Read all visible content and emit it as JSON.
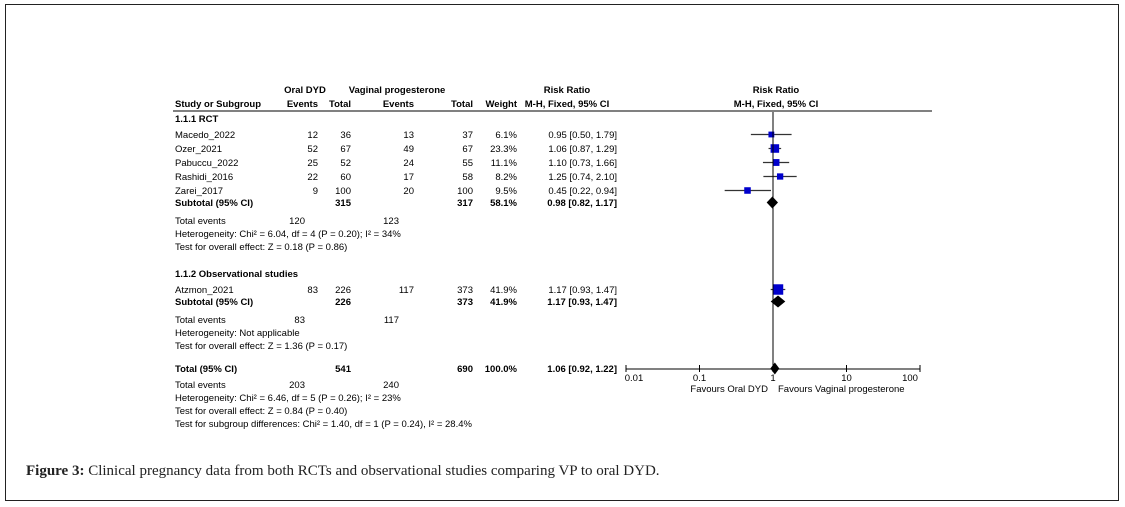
{
  "caption": {
    "label": "Figure 3:",
    "text": " Clinical pregnancy data from both RCTs and observational studies comparing VP to oral DYD."
  },
  "chart_data": {
    "type": "forest",
    "header": {
      "group1": "Oral DYD",
      "group2": "Vaginal progesterone",
      "rr_title": "Risk Ratio",
      "rr_method": "M-H, Fixed, 95% CI",
      "col_study": "Study or Subgroup",
      "col_events": "Events",
      "col_total": "Total",
      "col_weight": "Weight",
      "plot_title": "Risk Ratio",
      "plot_method": "M-H, Fixed, 95% CI"
    },
    "subgroups": [
      {
        "title": "1.1.1 RCT",
        "studies": [
          {
            "name": "Macedo_2022",
            "e1": "12",
            "n1": "36",
            "e2": "13",
            "n2": "37",
            "weight": "6.1%",
            "ci": "0.95 [0.50, 1.79]",
            "rr": 0.95,
            "lo": 0.5,
            "hi": 1.79,
            "w": 6.1
          },
          {
            "name": "Ozer_2021",
            "e1": "52",
            "n1": "67",
            "e2": "49",
            "n2": "67",
            "weight": "23.3%",
            "ci": "1.06 [0.87, 1.29]",
            "rr": 1.06,
            "lo": 0.87,
            "hi": 1.29,
            "w": 23.3
          },
          {
            "name": "Pabuccu_2022",
            "e1": "25",
            "n1": "52",
            "e2": "24",
            "n2": "55",
            "weight": "11.1%",
            "ci": "1.10 [0.73, 1.66]",
            "rr": 1.1,
            "lo": 0.73,
            "hi": 1.66,
            "w": 11.1
          },
          {
            "name": "Rashidi_2016",
            "e1": "22",
            "n1": "60",
            "e2": "17",
            "n2": "58",
            "weight": "8.2%",
            "ci": "1.25 [0.74, 2.10]",
            "rr": 1.25,
            "lo": 0.74,
            "hi": 2.1,
            "w": 8.2
          },
          {
            "name": "Zarei_2017",
            "e1": "9",
            "n1": "100",
            "e2": "20",
            "n2": "100",
            "weight": "9.5%",
            "ci": "0.45 [0.22, 0.94]",
            "rr": 0.45,
            "lo": 0.22,
            "hi": 0.94,
            "w": 9.5
          }
        ],
        "subtotal": {
          "label": "Subtotal (95% CI)",
          "n1": "315",
          "n2": "317",
          "weight": "58.1%",
          "ci": "0.98 [0.82, 1.17]",
          "rr": 0.98,
          "lo": 0.82,
          "hi": 1.17
        },
        "total_events": {
          "label": "Total events",
          "e1": "120",
          "e2": "123"
        },
        "heterogeneity": "Heterogeneity: Chi² = 6.04, df = 4 (P = 0.20); I² = 34%",
        "overall_effect": "Test for overall effect: Z = 0.18 (P = 0.86)"
      },
      {
        "title": "1.1.2 Observational studies",
        "studies": [
          {
            "name": "Atzmon_2021",
            "e1": "83",
            "n1": "226",
            "e2": "117",
            "n2": "373",
            "weight": "41.9%",
            "ci": "1.17 [0.93, 1.47]",
            "rr": 1.17,
            "lo": 0.93,
            "hi": 1.47,
            "w": 41.9
          }
        ],
        "subtotal": {
          "label": "Subtotal (95% CI)",
          "n1": "226",
          "n2": "373",
          "weight": "41.9%",
          "ci": "1.17 [0.93, 1.47]",
          "rr": 1.17,
          "lo": 0.93,
          "hi": 1.47
        },
        "total_events": {
          "label": "Total events",
          "e1": "83",
          "e2": "117"
        },
        "heterogeneity": "Heterogeneity: Not applicable",
        "overall_effect": "Test for overall effect: Z = 1.36 (P = 0.17)"
      }
    ],
    "total": {
      "label": "Total (95% CI)",
      "n1": "541",
      "n2": "690",
      "weight": "100.0%",
      "ci": "1.06 [0.92, 1.22]",
      "rr": 1.06,
      "lo": 0.92,
      "hi": 1.22
    },
    "total_events": {
      "label": "Total events",
      "e1": "203",
      "e2": "240"
    },
    "heterogeneity": "Heterogeneity: Chi² = 6.46, df = 5 (P = 0.26); I² = 23%",
    "overall_effect": "Test for overall effect: Z = 0.84 (P = 0.40)",
    "subgroup_diff": "Test for subgroup differences: Chi² = 1.40, df = 1 (P = 0.24), I² = 28.4%",
    "axis": {
      "scale": "log",
      "xlim": [
        0.01,
        100
      ],
      "ticks": [
        0.01,
        0.1,
        1,
        10,
        100
      ],
      "tick_labels": [
        "0.01",
        "0.1",
        "1",
        "10",
        "100"
      ],
      "favours_left": "Favours Oral DYD",
      "favours_right": "Favours Vaginal progesterone"
    },
    "colors": {
      "study_marker": "#0000cc",
      "ci_line": "#000000",
      "diamond": "#000000"
    }
  }
}
